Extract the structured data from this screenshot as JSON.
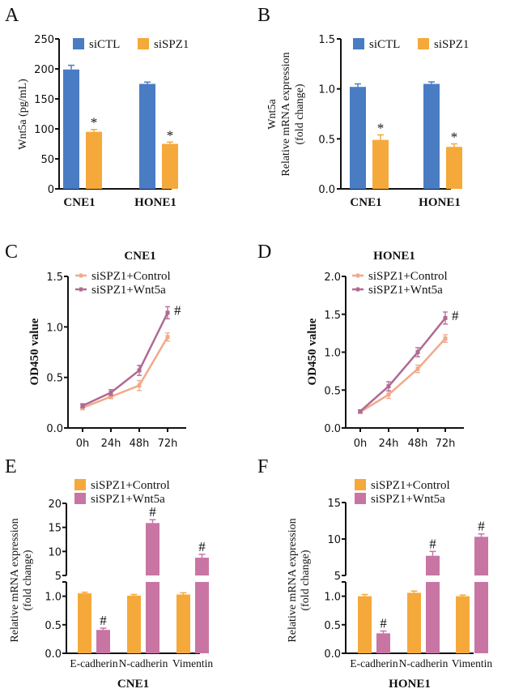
{
  "colors": {
    "siCTL": "#4a7cc4",
    "siSPZ1": "#f5a93a",
    "control_line": "#f2a98a",
    "wnt5a_line": "#b06a92",
    "control_bar": "#f5a93a",
    "wnt5a_bar": "#c875a4"
  },
  "chart_data": [
    {
      "id": "A",
      "panel_label": "A",
      "type": "bar",
      "title": "",
      "ylabel": "Wnt5a (pg/mL)",
      "xlabel": "",
      "ylim": [
        0,
        250
      ],
      "yticks": [
        "0",
        "50",
        "100",
        "150",
        "200",
        "250"
      ],
      "ytick_values": [
        0,
        50,
        100,
        150,
        200,
        250
      ],
      "categories": [
        "CNE1",
        "HONE1"
      ],
      "legend": [
        "siCTL",
        "siSPZ1"
      ],
      "legend_position": "top",
      "series": [
        {
          "name": "siCTL",
          "values": [
            199,
            175
          ],
          "errors": [
            7,
            3
          ],
          "marks": [
            "",
            ""
          ]
        },
        {
          "name": "siSPZ1",
          "values": [
            95,
            75
          ],
          "errors": [
            4,
            3
          ],
          "marks": [
            "*",
            "*"
          ]
        }
      ]
    },
    {
      "id": "B",
      "panel_label": "B",
      "type": "bar",
      "title": "",
      "ylabel_lines": [
        "Wnt5a",
        "Relative mRNA expression",
        "(fold change)"
      ],
      "xlabel": "",
      "ylim": [
        0,
        1.5
      ],
      "yticks": [
        "0.0",
        "0.5",
        "1.0",
        "1.5"
      ],
      "ytick_values": [
        0,
        0.5,
        1.0,
        1.5
      ],
      "categories": [
        "CNE1",
        "HONE1"
      ],
      "legend": [
        "siCTL",
        "siSPZ1"
      ],
      "legend_position": "top",
      "series": [
        {
          "name": "siCTL",
          "values": [
            1.02,
            1.05
          ],
          "errors": [
            0.03,
            0.02
          ],
          "marks": [
            "",
            ""
          ]
        },
        {
          "name": "siSPZ1",
          "values": [
            0.49,
            0.42
          ],
          "errors": [
            0.05,
            0.03
          ],
          "marks": [
            "*",
            "*"
          ]
        }
      ]
    },
    {
      "id": "C",
      "panel_label": "C",
      "type": "line",
      "title": "CNE1",
      "ylabel": "OD450 value",
      "xlabel": "",
      "ylim": [
        0,
        1.5
      ],
      "yticks": [
        "0.0",
        "0.5",
        "1.0",
        "1.5"
      ],
      "ytick_values": [
        0,
        0.5,
        1.0,
        1.5
      ],
      "x": [
        "0h",
        "24h",
        "48h",
        "72h"
      ],
      "legend": [
        "siSPZ1+Control",
        "siSPZ1+Wnt5a"
      ],
      "legend_position": "top-left",
      "series": [
        {
          "name": "siSPZ1+Control",
          "values": [
            0.2,
            0.31,
            0.42,
            0.9
          ],
          "errors": [
            0.02,
            0.02,
            0.05,
            0.04
          ]
        },
        {
          "name": "siSPZ1+Wnt5a",
          "values": [
            0.22,
            0.35,
            0.57,
            1.14
          ],
          "errors": [
            0.02,
            0.03,
            0.05,
            0.06
          ]
        }
      ],
      "annotations": [
        {
          "series": 1,
          "index": 3,
          "text": "#"
        }
      ]
    },
    {
      "id": "D",
      "panel_label": "D",
      "type": "line",
      "title": "HONE1",
      "ylabel": "OD450 value",
      "xlabel": "",
      "ylim": [
        0,
        2.0
      ],
      "yticks": [
        "0.0",
        "0.5",
        "1.0",
        "1.5",
        "2.0"
      ],
      "ytick_values": [
        0,
        0.5,
        1.0,
        1.5,
        2.0
      ],
      "x": [
        "0h",
        "24h",
        "48h",
        "72h"
      ],
      "legend": [
        "siSPZ1+Control",
        "siSPZ1+Wnt5a"
      ],
      "legend_position": "top-left",
      "series": [
        {
          "name": "siSPZ1+Control",
          "values": [
            0.21,
            0.44,
            0.78,
            1.18
          ],
          "errors": [
            0.02,
            0.05,
            0.05,
            0.05
          ]
        },
        {
          "name": "siSPZ1+Wnt5a",
          "values": [
            0.22,
            0.55,
            1.0,
            1.45
          ],
          "errors": [
            0.02,
            0.06,
            0.06,
            0.08
          ]
        }
      ],
      "annotations": [
        {
          "series": 1,
          "index": 3,
          "text": "#"
        }
      ]
    },
    {
      "id": "E",
      "panel_label": "E",
      "type": "bar",
      "title": "",
      "ylabel_lines": [
        "Relative mRNA expression",
        "(fold change)"
      ],
      "xlabel": "CNE1",
      "broken_axis": true,
      "ylim_lower": [
        0,
        1.25
      ],
      "ylim_upper": [
        5,
        20
      ],
      "yticks_lower": [
        "0.0",
        "0.5",
        "1.0"
      ],
      "ytick_values_lower": [
        0,
        0.5,
        1.0
      ],
      "yticks_upper": [
        "5",
        "10",
        "15",
        "20"
      ],
      "ytick_values_upper": [
        5,
        10,
        15,
        20
      ],
      "categories": [
        "E-cadherin",
        "N-cadherin",
        "Vimentin"
      ],
      "legend": [
        "siSPZ1+Control",
        "siSPZ1+Wnt5a"
      ],
      "legend_position": "top",
      "series": [
        {
          "name": "siSPZ1+Control",
          "values": [
            1.05,
            1.01,
            1.03
          ],
          "errors": [
            0.02,
            0.02,
            0.03
          ],
          "marks": [
            "",
            "",
            ""
          ]
        },
        {
          "name": "siSPZ1+Wnt5a",
          "values": [
            0.41,
            15.9,
            8.7
          ],
          "errors": [
            0.03,
            0.7,
            0.7
          ],
          "marks": [
            "#",
            "#",
            "#"
          ]
        }
      ]
    },
    {
      "id": "F",
      "panel_label": "F",
      "type": "bar",
      "title": "",
      "ylabel_lines": [
        "Relative mRNA expression",
        "(fold change)"
      ],
      "xlabel": "HONE1",
      "broken_axis": true,
      "ylim_lower": [
        0,
        1.25
      ],
      "ylim_upper": [
        5,
        15
      ],
      "yticks_lower": [
        "0.0",
        "0.5",
        "1.0"
      ],
      "ytick_values_lower": [
        0,
        0.5,
        1.0
      ],
      "yticks_upper": [
        "5",
        "10",
        "15"
      ],
      "ytick_values_upper": [
        5,
        10,
        15
      ],
      "categories": [
        "E-cadherin",
        "N-cadherin",
        "Vimentin"
      ],
      "legend": [
        "siSPZ1+Control",
        "siSPZ1+Wnt5a"
      ],
      "legend_position": "top",
      "series": [
        {
          "name": "siSPZ1+Control",
          "values": [
            1.0,
            1.06,
            1.0
          ],
          "errors": [
            0.03,
            0.03,
            0.02
          ],
          "marks": [
            "",
            "",
            ""
          ]
        },
        {
          "name": "siSPZ1+Wnt5a",
          "values": [
            0.35,
            7.7,
            10.3
          ],
          "errors": [
            0.04,
            0.6,
            0.4
          ],
          "marks": [
            "#",
            "#",
            "#"
          ]
        }
      ]
    }
  ]
}
